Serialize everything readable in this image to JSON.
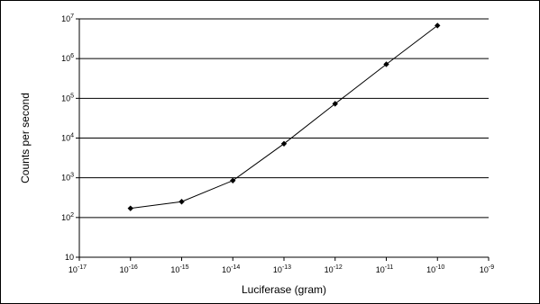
{
  "chart_data": {
    "type": "line",
    "xlabel": "Luciferase (gram)",
    "ylabel": "Counts per second",
    "x_scale": "log",
    "y_scale": "log",
    "xlim": [
      1e-17,
      1e-09
    ],
    "ylim": [
      10,
      10000000
    ],
    "grid": "horizontal major gridlines",
    "legend": "none",
    "x_ticks": [
      {
        "base": "10",
        "exp": "-17",
        "value": 1e-17
      },
      {
        "base": "10",
        "exp": "-16",
        "value": 1e-16
      },
      {
        "base": "10",
        "exp": "-15",
        "value": 1e-15
      },
      {
        "base": "10",
        "exp": "-14",
        "value": 1e-14
      },
      {
        "base": "10",
        "exp": "-13",
        "value": 1e-13
      },
      {
        "base": "10",
        "exp": "-12",
        "value": 1e-12
      },
      {
        "base": "10",
        "exp": "-11",
        "value": 1e-11
      },
      {
        "base": "10",
        "exp": "-10",
        "value": 1e-10
      },
      {
        "base": "10",
        "exp": "-9",
        "value": 1e-09
      }
    ],
    "y_ticks": [
      {
        "base": "10",
        "exp": "",
        "value": 10
      },
      {
        "base": "10",
        "exp": "2",
        "value": 100
      },
      {
        "base": "10",
        "exp": "3",
        "value": 1000
      },
      {
        "base": "10",
        "exp": "4",
        "value": 10000
      },
      {
        "base": "10",
        "exp": "5",
        "value": 100000
      },
      {
        "base": "10",
        "exp": "6",
        "value": 1000000
      },
      {
        "base": "10",
        "exp": "7",
        "value": 10000000
      }
    ],
    "series": [
      {
        "x": [
          1e-16,
          1e-15,
          1e-14,
          1e-13,
          1e-12,
          1e-11,
          1e-10
        ],
        "y": [
          170,
          250,
          850,
          7200,
          73000,
          720000,
          6800000
        ]
      }
    ],
    "colors": {
      "line": "#000000",
      "marker": "#000000",
      "grid": "#000000"
    }
  }
}
